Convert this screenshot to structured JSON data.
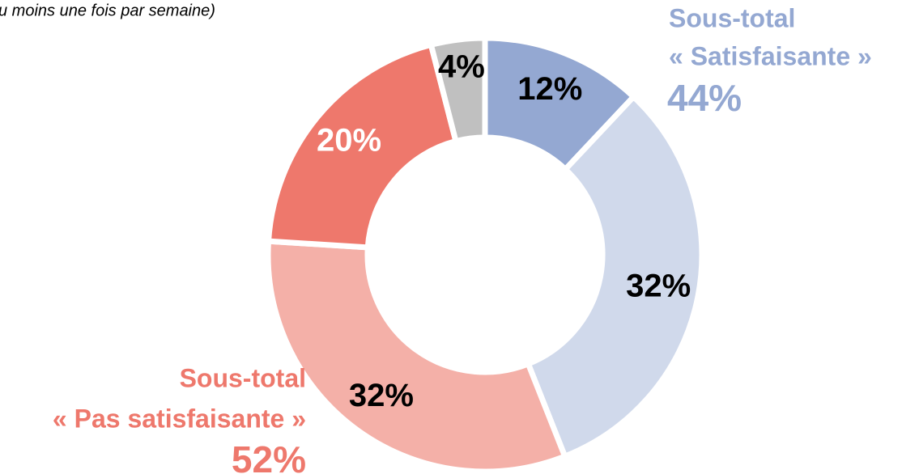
{
  "chart_data": {
    "type": "donut",
    "subtitle": "u moins une fois par semaine)",
    "values": [
      12,
      32,
      32,
      20,
      4
    ],
    "value_labels": [
      "12%",
      "32%",
      "32%",
      "20%",
      "4%"
    ],
    "colors": [
      "#94a8d2",
      "#d0d9eb",
      "#f4b0a8",
      "#ee786c",
      "#c0c0c0"
    ],
    "label_colors": [
      "#000000",
      "#000000",
      "#000000",
      "#ffffff",
      "#000000"
    ],
    "annotations": [
      {
        "lines": [
          "Sous-total",
          "« Satisfaisante »",
          "44%"
        ],
        "color": "#94a8d2"
      },
      {
        "lines": [
          "Sous-total",
          "« Pas satisfaisante »",
          "52%"
        ],
        "color": "#ee786c"
      }
    ]
  }
}
